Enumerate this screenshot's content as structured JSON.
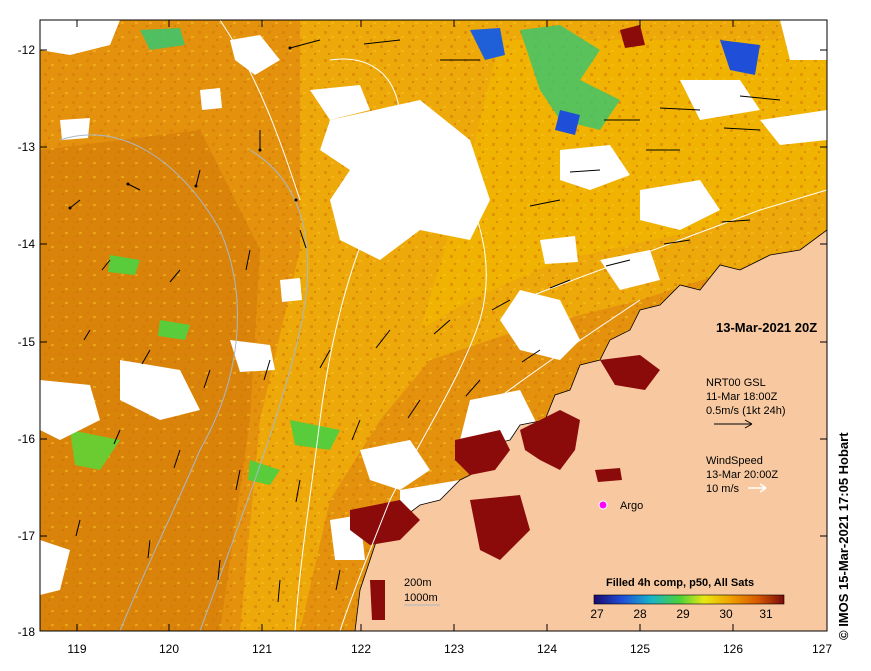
{
  "map": {
    "lon_ticks": [
      "119",
      "120",
      "121",
      "122",
      "123",
      "124",
      "125",
      "126",
      "127"
    ],
    "lat_ticks": [
      "-12",
      "-13",
      "-14",
      "-15",
      "-16",
      "-17",
      "-18"
    ],
    "date_label": "13-Mar-2021 20Z",
    "current": {
      "title": "NRT00 GSL",
      "time": "11-Mar 18:00Z",
      "scale": "0.5m/s (1kt 24h)"
    },
    "wind": {
      "title": "WindSpeed",
      "time": "13-Mar 20:00Z",
      "scale": "10 m/s"
    },
    "argo_label": "Argo",
    "depth_200": "200m",
    "depth_1000": "1000m",
    "colorbar": {
      "title": "Filled 4h comp, p50, All Sats",
      "ticks": [
        "27",
        "28",
        "29",
        "30",
        "31"
      ]
    },
    "credit": "© IMOS 15-Mar-2021 17:05 Hobart",
    "colors": {
      "land": "#f8c9a0",
      "sst_warm": "#e08a0c",
      "sst_mid": "#f0b400",
      "sst_hot": "#8b0a0a",
      "cloud": "#ffffff",
      "argo": "#ff00ff"
    }
  }
}
